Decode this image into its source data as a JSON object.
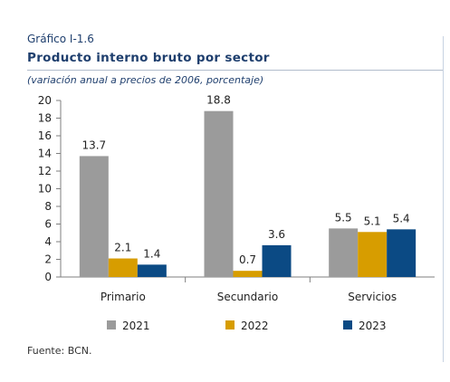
{
  "header": {
    "figure_label": "Gráfico I-1.6",
    "title": "Producto interno bruto por sector",
    "subtitle": "(variación anual a precios de 2006, porcentaje)"
  },
  "source": "Fuente: BCN.",
  "chart_data": {
    "type": "bar",
    "title": "Producto interno bruto por sector",
    "subtitle": "(variación anual a precios de 2006, porcentaje)",
    "xlabel": "",
    "ylabel": "",
    "categories": [
      "Primario",
      "Secundario",
      "Servicios"
    ],
    "series": [
      {
        "name": "2021",
        "values": [
          13.7,
          18.8,
          5.5
        ],
        "color": "#9b9b9b"
      },
      {
        "name": "2022",
        "values": [
          2.1,
          0.7,
          5.1
        ],
        "color": "#d79d00"
      },
      {
        "name": "2023",
        "values": [
          1.4,
          3.6,
          5.4
        ],
        "color": "#0b4a84"
      }
    ],
    "value_labels": true,
    "yticks": [
      0,
      2,
      4,
      6,
      8,
      10,
      12,
      14,
      16,
      18,
      20
    ],
    "ylim": [
      0,
      20
    ],
    "grid": false,
    "legend": "bottom"
  }
}
